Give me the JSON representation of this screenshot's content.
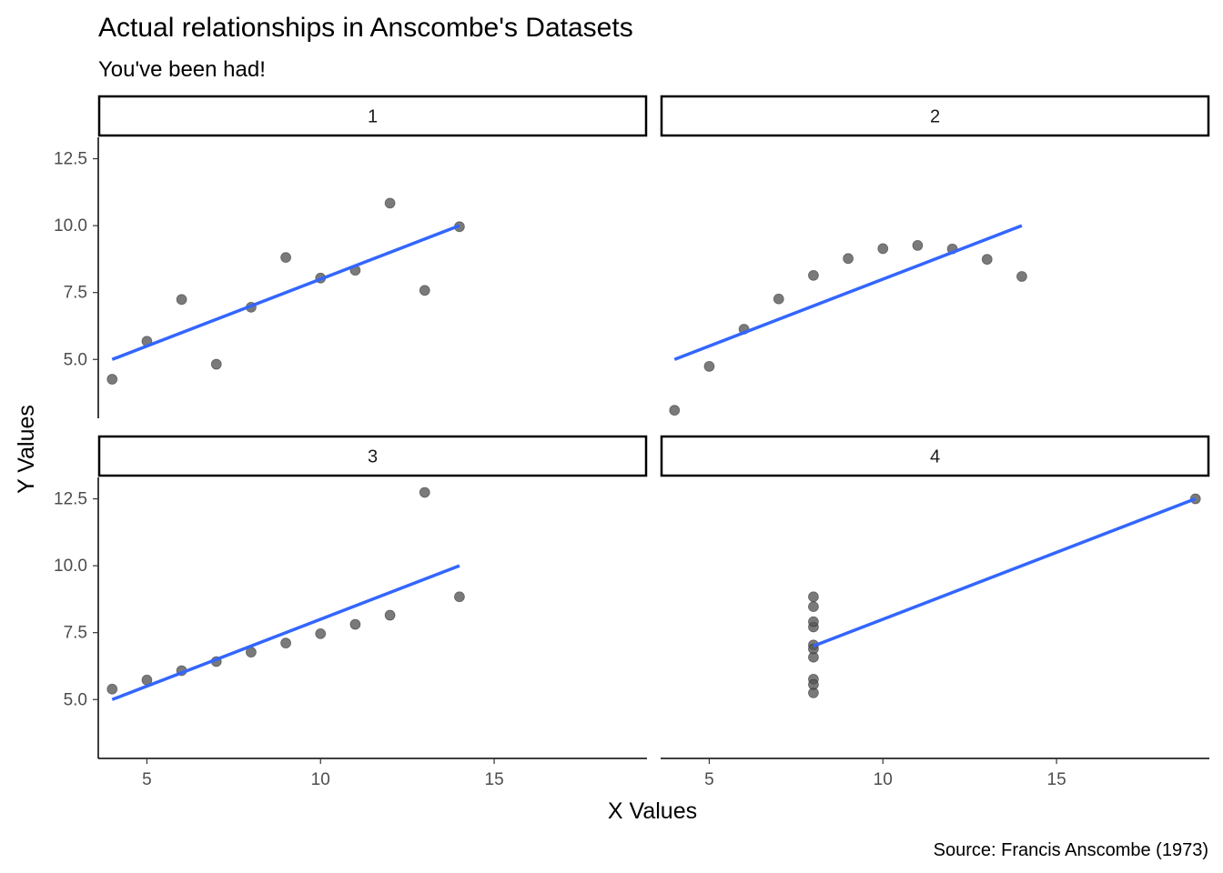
{
  "title": "Actual relationships in Anscombe's Datasets",
  "subtitle": "You've been had!",
  "caption": "Source: Francis Anscombe (1973)",
  "chart_data": {
    "type": "scatter",
    "facet_layout": "2x2",
    "xlabel": "X Values",
    "ylabel": "Y Values",
    "xlim": [
      3.6,
      19.4
    ],
    "ylim": [
      2.8,
      13.3
    ],
    "x_ticks": [
      5,
      10,
      15
    ],
    "x_tick_labels": [
      "5",
      "10",
      "15"
    ],
    "y_ticks": [
      5.0,
      7.5,
      10.0,
      12.5
    ],
    "y_tick_labels": [
      "5.0",
      "7.5",
      "10.0",
      "12.5"
    ],
    "grid": false,
    "point_color": "#555555",
    "fit_line_color": "#3366FF",
    "panels": [
      {
        "label": "1",
        "x": [
          10,
          8,
          13,
          9,
          11,
          14,
          6,
          4,
          12,
          7,
          5
        ],
        "y": [
          8.04,
          6.95,
          7.58,
          8.81,
          8.33,
          9.96,
          7.24,
          4.26,
          10.84,
          4.82,
          5.68
        ],
        "fit": {
          "x": [
            4,
            14
          ],
          "y": [
            5.0,
            10.0
          ]
        }
      },
      {
        "label": "2",
        "x": [
          10,
          8,
          13,
          9,
          11,
          14,
          6,
          4,
          12,
          7,
          5
        ],
        "y": [
          9.14,
          8.14,
          8.74,
          8.77,
          9.26,
          8.1,
          6.13,
          3.1,
          9.13,
          7.26,
          4.74
        ],
        "fit": {
          "x": [
            4,
            14
          ],
          "y": [
            5.0,
            10.0
          ]
        }
      },
      {
        "label": "3",
        "x": [
          10,
          8,
          13,
          9,
          11,
          14,
          6,
          4,
          12,
          7,
          5
        ],
        "y": [
          7.46,
          6.77,
          12.74,
          7.11,
          7.81,
          8.84,
          6.08,
          5.39,
          8.15,
          6.42,
          5.73
        ],
        "fit": {
          "x": [
            4,
            14
          ],
          "y": [
            5.0,
            10.0
          ]
        }
      },
      {
        "label": "4",
        "x": [
          8,
          8,
          8,
          8,
          8,
          8,
          8,
          19,
          8,
          8,
          8
        ],
        "y": [
          6.58,
          5.76,
          7.71,
          8.84,
          8.47,
          7.04,
          5.25,
          12.5,
          5.56,
          7.91,
          6.89
        ],
        "fit": {
          "x": [
            8,
            19
          ],
          "y": [
            7.0,
            12.5
          ]
        }
      }
    ]
  }
}
